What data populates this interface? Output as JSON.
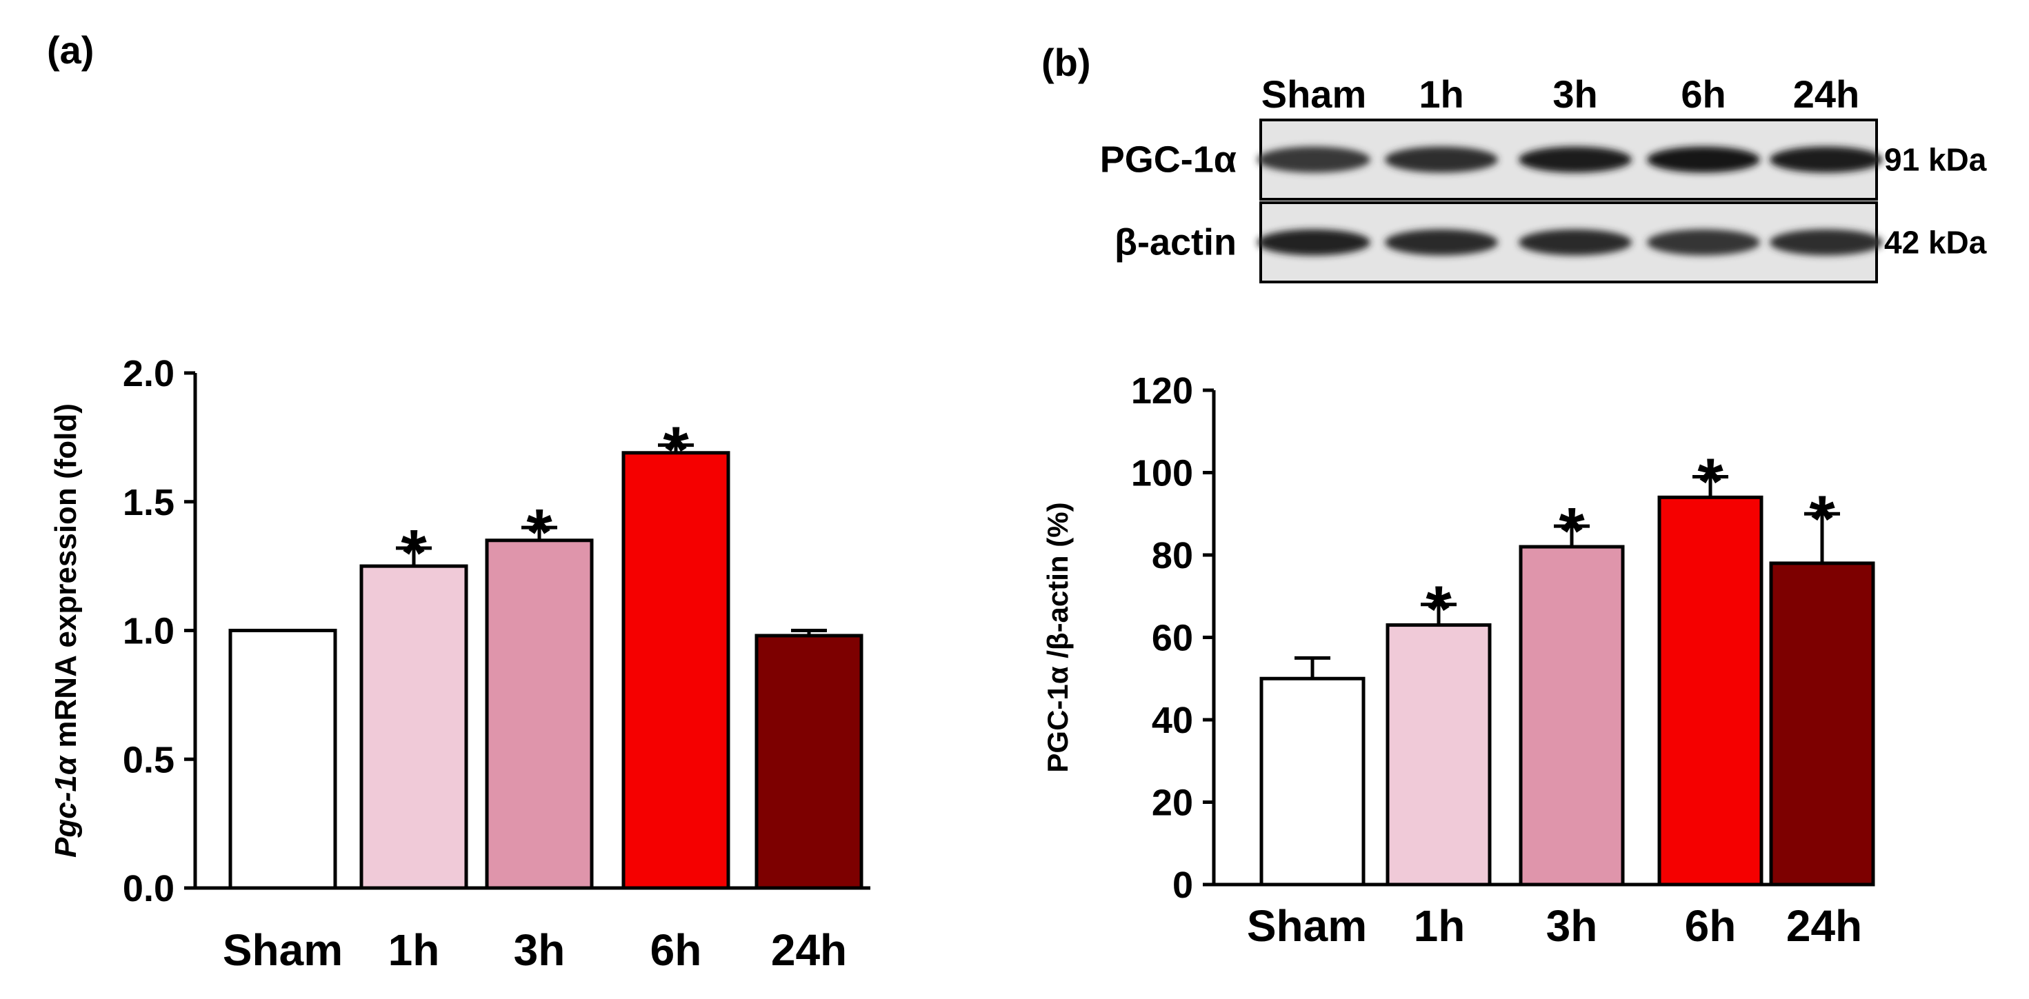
{
  "chart_data": [
    {
      "panel": "(a)",
      "type": "bar",
      "categories": [
        "Sham",
        "1h",
        "3h",
        "6h",
        "24h"
      ],
      "values": [
        1.0,
        1.25,
        1.35,
        1.69,
        0.98
      ],
      "errors": [
        0.0,
        0.07,
        0.05,
        0.03,
        0.02
      ],
      "significant": [
        false,
        true,
        true,
        true,
        false
      ],
      "colors": [
        "#ffffff",
        "#f0cad8",
        "#df95ab",
        "#f50000",
        "#7d0000"
      ],
      "ylabel_italic": "Pgc-1α",
      "ylabel_rest": " mRNA expression (fold)",
      "ylim": [
        0,
        2.0
      ],
      "yticks": [
        0.0,
        0.5,
        1.0,
        1.5,
        2.0
      ],
      "ytick_labels": [
        "0.0",
        "0.5",
        "1.0",
        "1.5",
        "2.0"
      ],
      "marker": "*"
    },
    {
      "panel": "(b)",
      "type": "bar",
      "categories": [
        "Sham",
        "1h",
        "3h",
        "6h",
        "24h"
      ],
      "values": [
        50,
        63,
        82,
        94,
        78
      ],
      "errors": [
        5,
        5,
        5,
        5,
        12
      ],
      "significant": [
        false,
        true,
        true,
        true,
        true
      ],
      "colors": [
        "#ffffff",
        "#f0cad8",
        "#df95ab",
        "#f50000",
        "#7d0000"
      ],
      "ylabel": "PGC-1α /β-actin (%)",
      "ylim": [
        0,
        120
      ],
      "yticks": [
        0,
        20,
        40,
        60,
        80,
        100,
        120
      ],
      "ytick_labels": [
        "0",
        "20",
        "40",
        "60",
        "80",
        "100",
        "120"
      ],
      "marker": "*"
    }
  ],
  "western_blot": {
    "lane_labels": [
      "Sham",
      "1h",
      "3h",
      "6h",
      "24h"
    ],
    "rows": [
      {
        "label": "PGC-1α",
        "size": "91 kDa",
        "intensity": [
          0.8,
          0.85,
          0.95,
          0.97,
          0.95
        ]
      },
      {
        "label": "β-actin",
        "size": "42 kDa",
        "intensity": [
          0.93,
          0.88,
          0.88,
          0.82,
          0.85
        ]
      }
    ]
  }
}
